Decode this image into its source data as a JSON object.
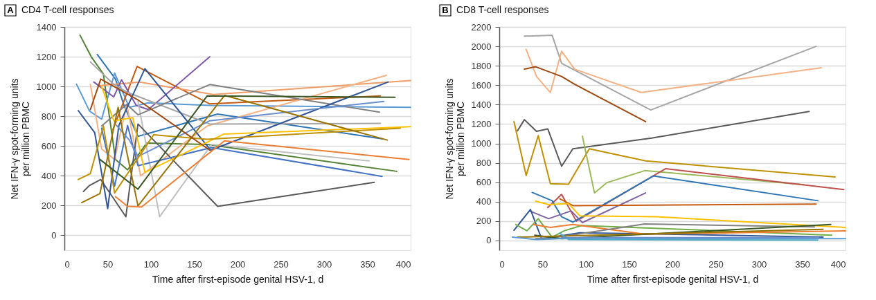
{
  "chart_data": [
    {
      "type": "line",
      "title": "CD4 T-cell responses",
      "annotations": [
        "A"
      ],
      "xlabel": "Time after first-episode genital HSV-1, d",
      "ylabel": "Net IFN-γ spot-forming units\nper million PBMC",
      "xlim": [
        0,
        400
      ],
      "xticks": [
        0,
        50,
        100,
        150,
        200,
        250,
        300,
        350,
        400
      ],
      "ylim": [
        -100,
        1400
      ],
      "yticks": [
        0,
        200,
        400,
        600,
        800,
        1000,
        1200,
        1400
      ],
      "grid": "y",
      "line_style": "solid",
      "series": [
        {
          "color": "#548235",
          "x": [
            18,
            31,
            45,
            59,
            73,
            95,
            165,
            384
          ],
          "values": [
            1345,
            1200,
            1085,
            510,
            440,
            620,
            610,
            430
          ]
        },
        {
          "color": "#2e75b6",
          "x": [
            38,
            59,
            69,
            85,
            177,
            368
          ],
          "values": [
            1215,
            1050,
            870,
            665,
            815,
            648
          ]
        },
        {
          "color": "#5b9bd5",
          "x": [
            14,
            29,
            43,
            58,
            75,
            97,
            168,
            400
          ],
          "values": [
            1015,
            835,
            780,
            1090,
            860,
            890,
            873,
            860
          ]
        },
        {
          "color": "#c55a11",
          "x": [
            56,
            84,
            168,
            365
          ],
          "values": [
            710,
            1135,
            883,
            937
          ]
        },
        {
          "color": "#f19c65",
          "x": [
            39,
            87,
            172,
            400
          ],
          "values": [
            1005,
            1030,
            946,
            1040
          ]
        },
        {
          "color": "#f4b183",
          "x": [
            30,
            43,
            58,
            72,
            88,
            165,
            372
          ],
          "values": [
            1015,
            580,
            510,
            880,
            400,
            735,
            1075
          ]
        },
        {
          "color": "#7e57a8",
          "x": [
            34,
            57,
            66,
            83,
            97,
            168
          ],
          "values": [
            1030,
            930,
            1045,
            873,
            845,
            1200
          ]
        },
        {
          "color": "#a5a5a5",
          "x": [
            30,
            57,
            73,
            168,
            365
          ],
          "values": [
            1165,
            1015,
            960,
            748,
            752
          ]
        },
        {
          "color": "#bfbfbf",
          "x": [
            85,
            110,
            170,
            352
          ],
          "values": [
            900,
            125,
            610,
            500
          ]
        },
        {
          "color": "#808080",
          "x": [
            43,
            72,
            85,
            168,
            364
          ],
          "values": [
            735,
            880,
            810,
            1013,
            828
          ]
        },
        {
          "color": "#595959",
          "x": [
            22,
            29,
            42,
            71,
            85,
            177,
            358
          ],
          "values": [
            295,
            335,
            375,
            125,
            748,
            195,
            356
          ]
        },
        {
          "color": "#2f5597",
          "x": [
            16,
            35,
            50,
            63,
            93,
            169,
            374
          ],
          "values": [
            838,
            690,
            180,
            740,
            1120,
            572,
            1030
          ]
        },
        {
          "color": "#4472c4",
          "x": [
            43,
            58,
            73,
            85,
            170,
            367
          ],
          "values": [
            720,
            330,
            738,
            468,
            590,
            396
          ]
        },
        {
          "color": "#698ed0",
          "x": [
            60,
            75,
            85,
            168,
            369
          ],
          "values": [
            740,
            640,
            530,
            770,
            900
          ]
        },
        {
          "color": "#ffc000",
          "x": [
            43,
            57,
            79,
            93,
            184,
            400
          ],
          "values": [
            1000,
            770,
            790,
            423,
            680,
            730
          ]
        },
        {
          "color": "#bf9000",
          "x": [
            16,
            30,
            45,
            58,
            103,
            165,
            388
          ],
          "values": [
            375,
            415,
            735,
            285,
            675,
            645,
            720
          ]
        },
        {
          "color": "#997300",
          "x": [
            20,
            41,
            62,
            72,
            85,
            185,
            373
          ],
          "values": [
            220,
            280,
            860,
            560,
            198,
            940,
            640
          ]
        },
        {
          "color": "#9e480e",
          "x": [
            30,
            42,
            85,
            168
          ],
          "values": [
            845,
            1050,
            910,
            572
          ]
        },
        {
          "color": "#ed7d31",
          "x": [
            59,
            73,
            89,
            185,
            398
          ],
          "values": [
            260,
            195,
            190,
            635,
            510
          ]
        },
        {
          "color": "#385723",
          "x": [
            41,
            85,
            165,
            382
          ],
          "values": [
            510,
            310,
            937,
            928
          ]
        }
      ]
    },
    {
      "type": "line",
      "title": "CD8 T-cell responses",
      "annotations": [
        "B"
      ],
      "xlabel": "Time after first-episode genital HSV-1, d",
      "ylabel": "Net IFN-γ spot-forming units\nper million PBMC",
      "xlim": [
        0,
        400
      ],
      "xticks": [
        0,
        50,
        100,
        150,
        200,
        250,
        300,
        350,
        400
      ],
      "ylim": [
        -100,
        2200
      ],
      "yticks": [
        0,
        200,
        400,
        600,
        800,
        1000,
        1200,
        1400,
        1600,
        1800,
        2000,
        2200
      ],
      "grid": "y",
      "line_style": "solid",
      "series": [
        {
          "color": "#a5a5a5",
          "x": [
            29,
            61,
            72,
            175,
            366
          ],
          "values": [
            2105,
            2115,
            1825,
            1345,
            2000
          ]
        },
        {
          "color": "#f4b183",
          "x": [
            31,
            43,
            59,
            72,
            87,
            164,
            372
          ],
          "values": [
            1970,
            1690,
            1525,
            1950,
            1765,
            1525,
            1780
          ]
        },
        {
          "color": "#9e480e",
          "x": [
            29,
            42,
            72,
            87,
            169
          ],
          "values": [
            1765,
            1790,
            1690,
            1610,
            1225
          ]
        },
        {
          "color": "#595959",
          "x": [
            21,
            29,
            43,
            56,
            72,
            85,
            176,
            358
          ],
          "values": [
            1130,
            1245,
            1125,
            1150,
            765,
            945,
            1055,
            1330
          ]
        },
        {
          "color": "#bf9000",
          "x": [
            17,
            31,
            45,
            59,
            80,
            104,
            169,
            388
          ],
          "values": [
            1225,
            670,
            1080,
            585,
            580,
            945,
            820,
            655
          ]
        },
        {
          "color": "#9bbb59",
          "x": [
            96,
            110,
            124,
            168,
            352
          ],
          "values": [
            1075,
            490,
            595,
            720,
            575
          ]
        },
        {
          "color": "#c0504d",
          "x": [
            56,
            72,
            89,
            192,
            398
          ],
          "values": [
            340,
            475,
            200,
            740,
            525
          ]
        },
        {
          "color": "#2e75b6",
          "x": [
            38,
            61,
            72,
            85,
            178,
            368
          ],
          "values": [
            495,
            410,
            245,
            190,
            665,
            410
          ]
        },
        {
          "color": "#8064a2",
          "x": [
            35,
            57,
            83,
            96,
            169
          ],
          "values": [
            305,
            225,
            305,
            185,
            490
          ]
        },
        {
          "color": "#c55a11",
          "x": [
            70,
            85,
            366
          ],
          "values": [
            430,
            360,
            375
          ]
        },
        {
          "color": "#ffc000",
          "x": [
            42,
            57,
            80,
            93,
            181,
            400
          ],
          "values": [
            405,
            370,
            380,
            255,
            245,
            135
          ]
        },
        {
          "color": "#2f5597",
          "x": [
            17,
            36,
            49,
            93,
            168,
            374
          ],
          "values": [
            105,
            320,
            15,
            80,
            70,
            35
          ]
        },
        {
          "color": "#70ad47",
          "x": [
            19,
            32,
            45,
            61,
            75,
            95,
            384
          ],
          "values": [
            165,
            100,
            225,
            35,
            100,
            155,
            55
          ]
        },
        {
          "color": "#ed7d31",
          "x": [
            39,
            59,
            85,
            168,
            400
          ],
          "values": [
            165,
            135,
            165,
            65,
            100
          ]
        },
        {
          "color": "#808080",
          "x": [
            42,
            72,
            168,
            364
          ],
          "values": [
            20,
            40,
            170,
            140
          ]
        },
        {
          "color": "#385723",
          "x": [
            41,
            72,
            383
          ],
          "values": [
            55,
            20,
            165
          ]
        },
        {
          "color": "#997300",
          "x": [
            21,
            45,
            374
          ],
          "values": [
            35,
            40,
            115
          ]
        },
        {
          "color": "#5b9bd5",
          "x": [
            15,
            43,
            70,
            400
          ],
          "values": [
            35,
            10,
            20,
            20
          ]
        },
        {
          "color": "#4bacc6",
          "x": [
            70,
            80,
            368
          ],
          "values": [
            75,
            10,
            5
          ]
        },
        {
          "color": "#698ed0",
          "x": [
            72,
            369
          ],
          "values": [
            30,
            30
          ]
        }
      ]
    }
  ]
}
